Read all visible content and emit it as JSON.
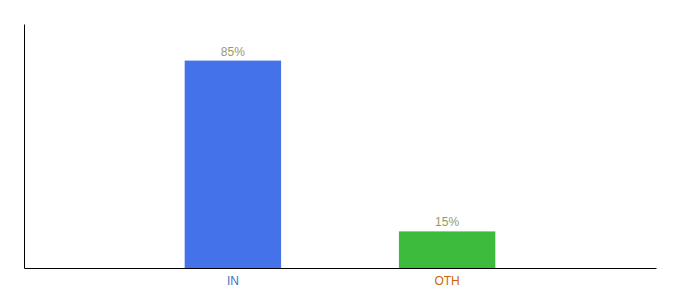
{
  "chart_data": {
    "type": "bar",
    "categories": [
      "IN",
      "OTH"
    ],
    "values": [
      85,
      15
    ],
    "colors": [
      "#4472e8",
      "#3dbb3d"
    ],
    "data_labels": true,
    "value_labels": [
      "85%",
      "15%"
    ],
    "ylim": [
      0,
      100
    ],
    "tick_labels": "x"
  }
}
